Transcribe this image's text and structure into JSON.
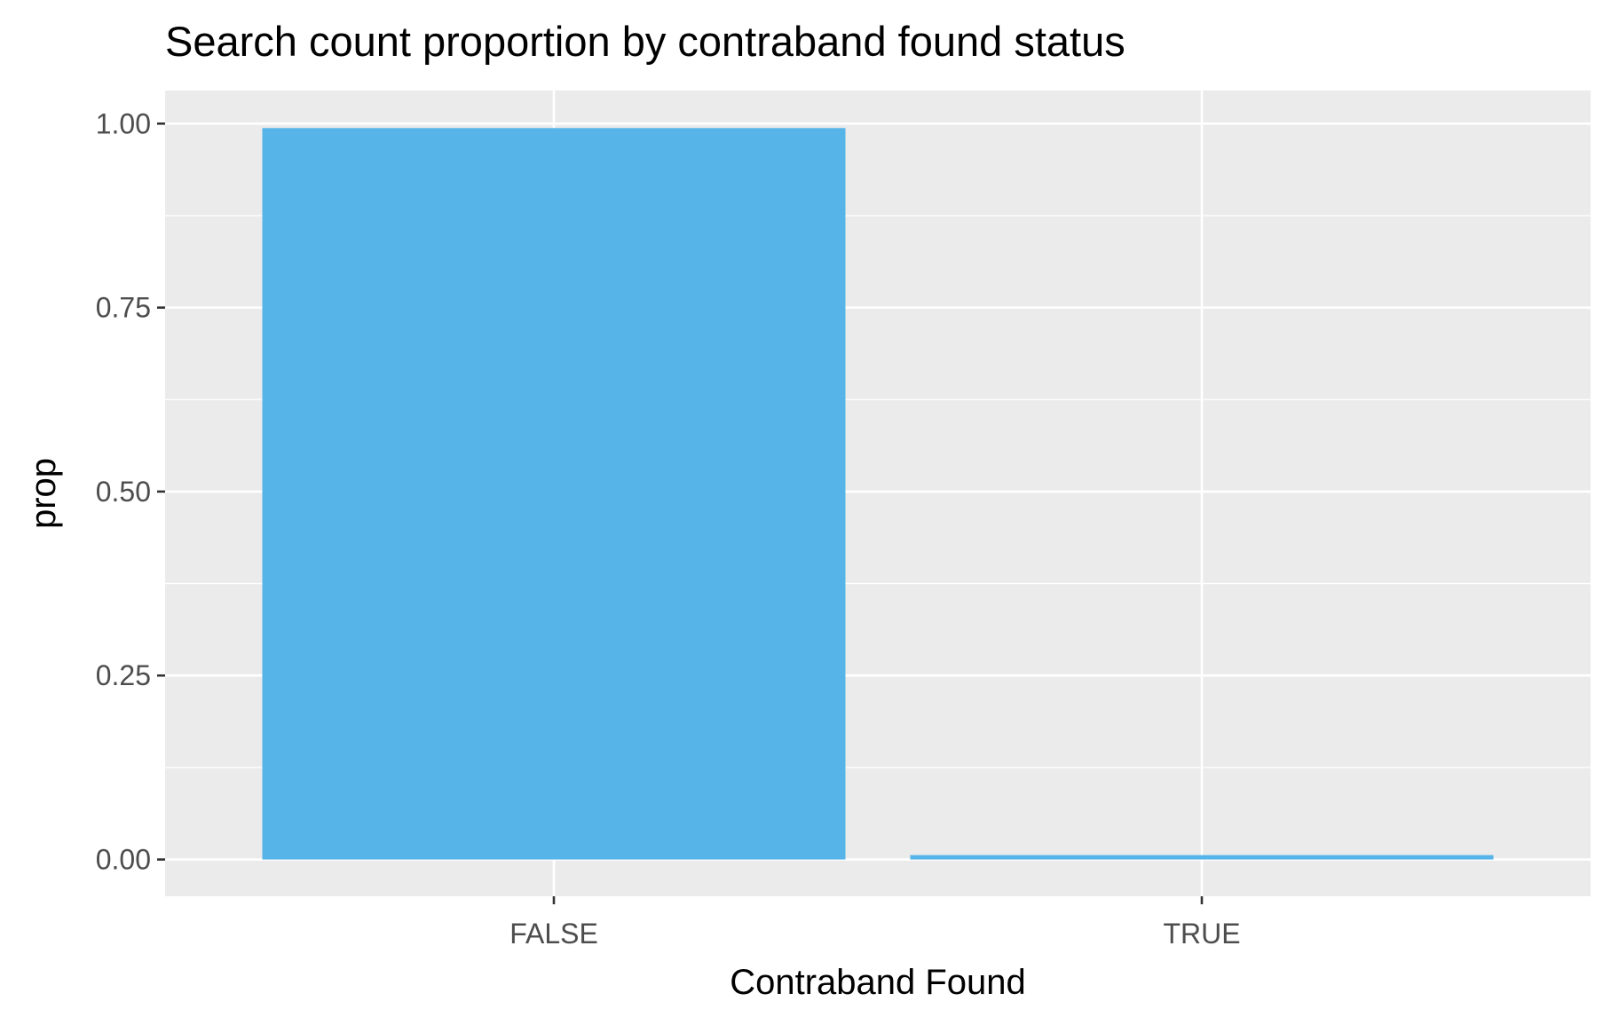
{
  "chart_data": {
    "type": "bar",
    "title": "Search count proportion by contraband found status",
    "xlabel": "Contraband Found",
    "ylabel": "prop",
    "categories": [
      "FALSE",
      "TRUE"
    ],
    "values": [
      0.994,
      0.006
    ],
    "ylim": [
      -0.05,
      1.045
    ],
    "yticks": [
      0.0,
      0.25,
      0.5,
      0.75,
      1.0
    ],
    "ytick_labels": [
      "0.00",
      "0.25",
      "0.50",
      "0.75",
      "1.00"
    ],
    "grid": true,
    "legend": "none",
    "colors": {
      "bar": "#56B4E9",
      "panel": "#EBEBEB",
      "grid": "#FFFFFF",
      "tick": "#333333"
    }
  }
}
